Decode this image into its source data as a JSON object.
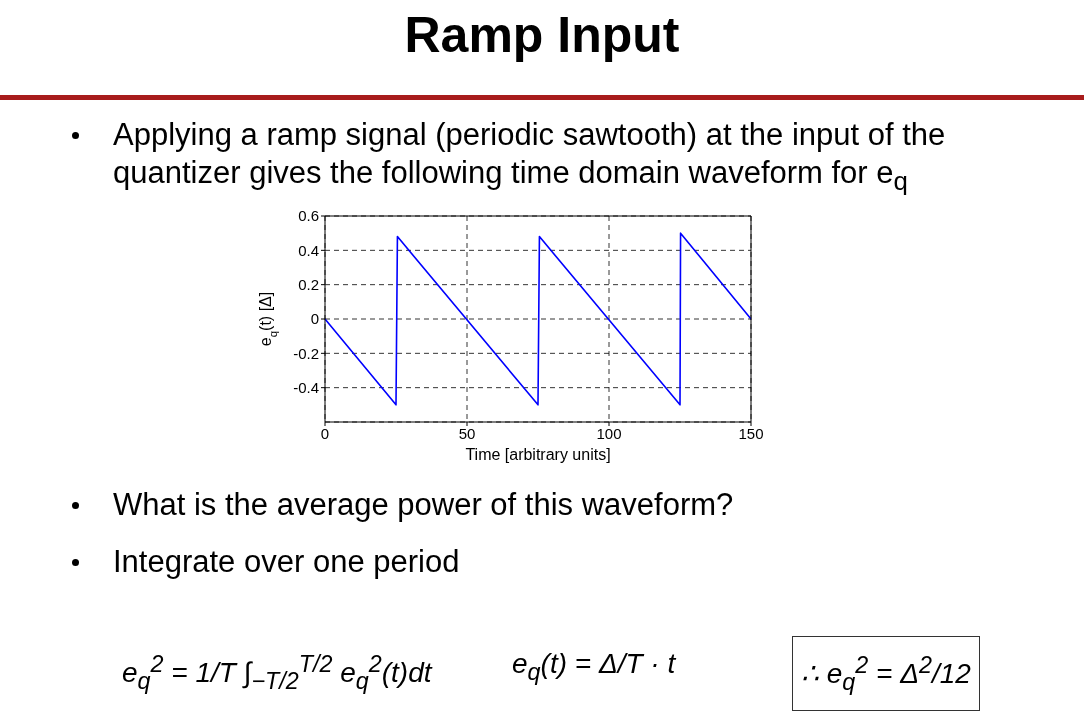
{
  "chart_data": {
    "type": "line",
    "title": "Ramp Input",
    "xlabel": "Time [arbitrary units]",
    "ylabel": "e$_{q}$(t) [Δ]",
    "x": [
      0,
      25,
      25.5,
      75,
      75.5,
      125,
      125.2,
      150
    ],
    "series": [
      {
        "color": "#0000ff",
        "values": [
          0,
          -0.5,
          0.48,
          -0.5,
          0.48,
          -0.5,
          0.5,
          0
        ]
      }
    ],
    "xlim": [
      0,
      150
    ],
    "xticks": [
      0,
      50,
      100,
      150
    ],
    "ylim": [
      -0.6,
      0.6
    ],
    "yticks": [
      -0.4,
      -0.2,
      0,
      0.2,
      0.4,
      0.6
    ],
    "grid": true,
    "annotations": [
      "Applying a ramp signal (periodic sawtooth) at the input of the quantizer gives the following time domain waveform for e$_{q}$",
      "What is the average power of this waveform?",
      "Integrate over one period",
      "e$_{q}$$^{2}$ = 1/T ∫$_{−T/2}$$^{T/2}$ e$_{q}$$^{2}$(t)dt",
      "e$_{q}$(t) = Δ/T · t",
      "∴ e$_{q}$$^{2}$ = Δ$^{2}$/12"
    ]
  }
}
